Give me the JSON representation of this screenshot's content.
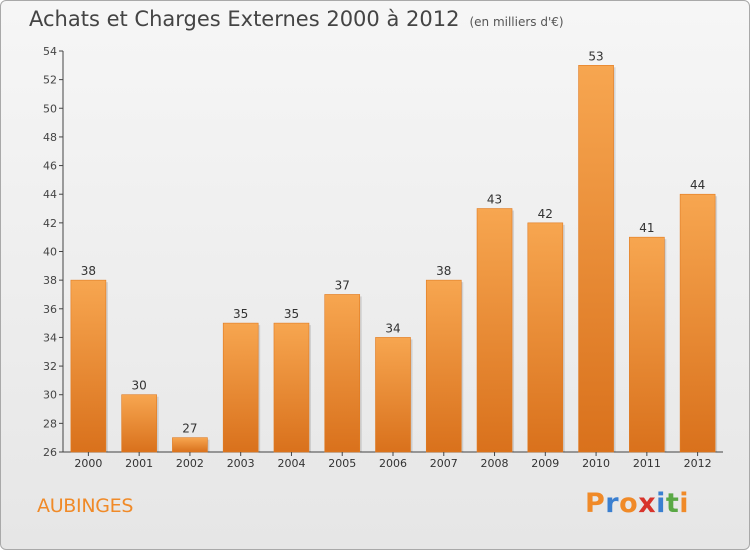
{
  "header": {
    "title": "Achats et Charges Externes 2000 à 2012",
    "subtitle": "(en milliers d'€)"
  },
  "footer": {
    "commune": "AUBINGES",
    "logo_letters": [
      "P",
      "r",
      "o",
      "x",
      "i",
      "t",
      "i"
    ],
    "logo_colors": [
      "#f08a28",
      "#3a7fd0",
      "#f08a28",
      "#d8342c",
      "#3a7fd0",
      "#5aa845",
      "#f08a28"
    ]
  },
  "chart_data": {
    "type": "bar",
    "categories": [
      "2000",
      "2001",
      "2002",
      "2003",
      "2004",
      "2005",
      "2006",
      "2007",
      "2008",
      "2009",
      "2010",
      "2011",
      "2012"
    ],
    "values": [
      38,
      30,
      27,
      35,
      35,
      37,
      34,
      38,
      43,
      42,
      53,
      41,
      44
    ],
    "data_labels": [
      "38",
      "30",
      "27",
      "35",
      "35",
      "37",
      "34",
      "38",
      "43",
      "42",
      "53",
      "41",
      "44"
    ],
    "yticks": [
      "26",
      "28",
      "30",
      "32",
      "34",
      "36",
      "38",
      "40",
      "42",
      "44",
      "46",
      "48",
      "50",
      "52",
      "54"
    ],
    "ylim": [
      26,
      54
    ],
    "title": "Achats et Charges Externes 2000 à 2012",
    "xlabel": "",
    "ylabel": "",
    "grid": false,
    "bar_color": "#f08a28"
  }
}
